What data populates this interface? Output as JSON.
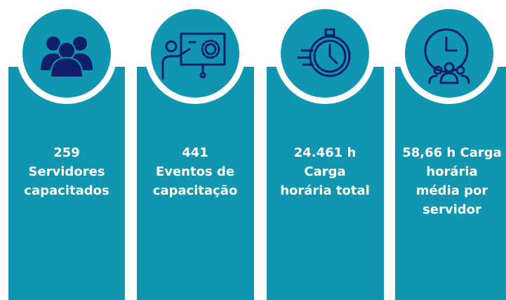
{
  "cards": [
    {
      "lines": [
        "259",
        "Servidores",
        "capacitados"
      ]
    },
    {
      "lines": [
        "441",
        "Eventos de",
        "capacitação"
      ]
    },
    {
      "lines": [
        "24.461 h",
        "Carga",
        "horária total"
      ]
    },
    {
      "lines": [
        "58,66 h Carga",
        "horária",
        "média por",
        "servidor"
      ]
    }
  ]
}
